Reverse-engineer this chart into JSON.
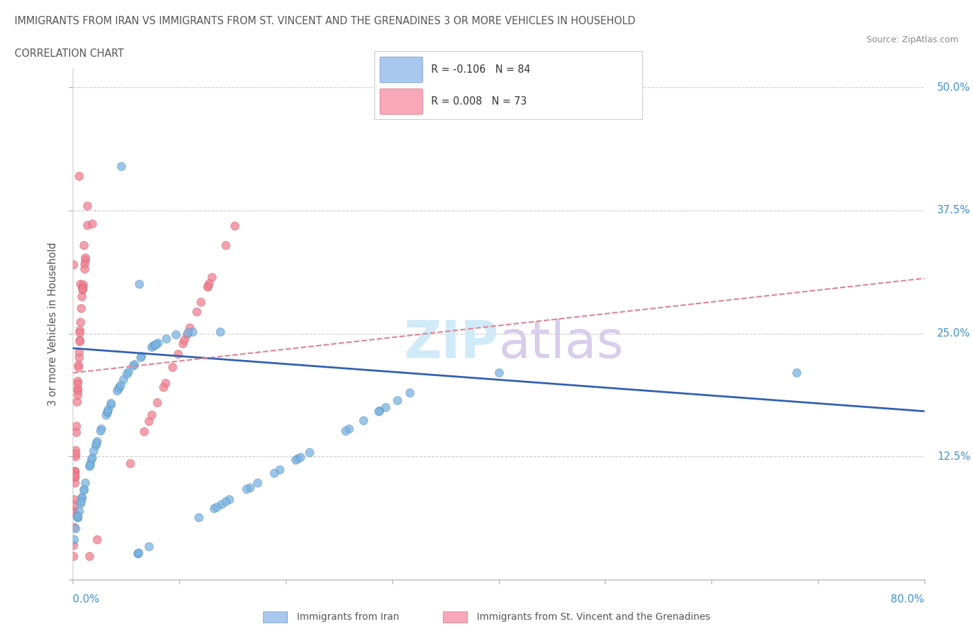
{
  "title1": "IMMIGRANTS FROM IRAN VS IMMIGRANTS FROM ST. VINCENT AND THE GRENADINES 3 OR MORE VEHICLES IN HOUSEHOLD",
  "title2": "CORRELATION CHART",
  "source": "Source: ZipAtlas.com",
  "ylabel_label": "3 or more Vehicles in Household",
  "iran_color": "#7ab3e0",
  "iran_edge": "#5090c0",
  "svg_color": "#f08090",
  "svg_edge": "#d06070",
  "iran_trend_color": "#3060b0",
  "svg_trend_color": "#e08090",
  "iran_R": -0.106,
  "iran_N": 84,
  "svg_R": 0.008,
  "svg_N": 73,
  "iran_trend_slope": -0.08,
  "iran_trend_intercept": 0.235,
  "svg_trend_slope": 0.12,
  "svg_trend_intercept": 0.21,
  "xlim": [
    0.0,
    0.8
  ],
  "ylim": [
    0.0,
    0.52
  ],
  "ytick_vals": [
    0.0,
    0.125,
    0.25,
    0.375,
    0.5
  ],
  "ytick_labels": [
    "",
    "12.5%",
    "25.0%",
    "37.5%",
    "50.0%"
  ],
  "legend_iran_color": "#a8c8f0",
  "legend_iran_edge": "#7090c0",
  "legend_svg_color": "#f8a8b8",
  "legend_svg_edge": "#d07080",
  "watermark_zip_color": "#cce8f8",
  "watermark_atlas_color": "#d4c8e8"
}
